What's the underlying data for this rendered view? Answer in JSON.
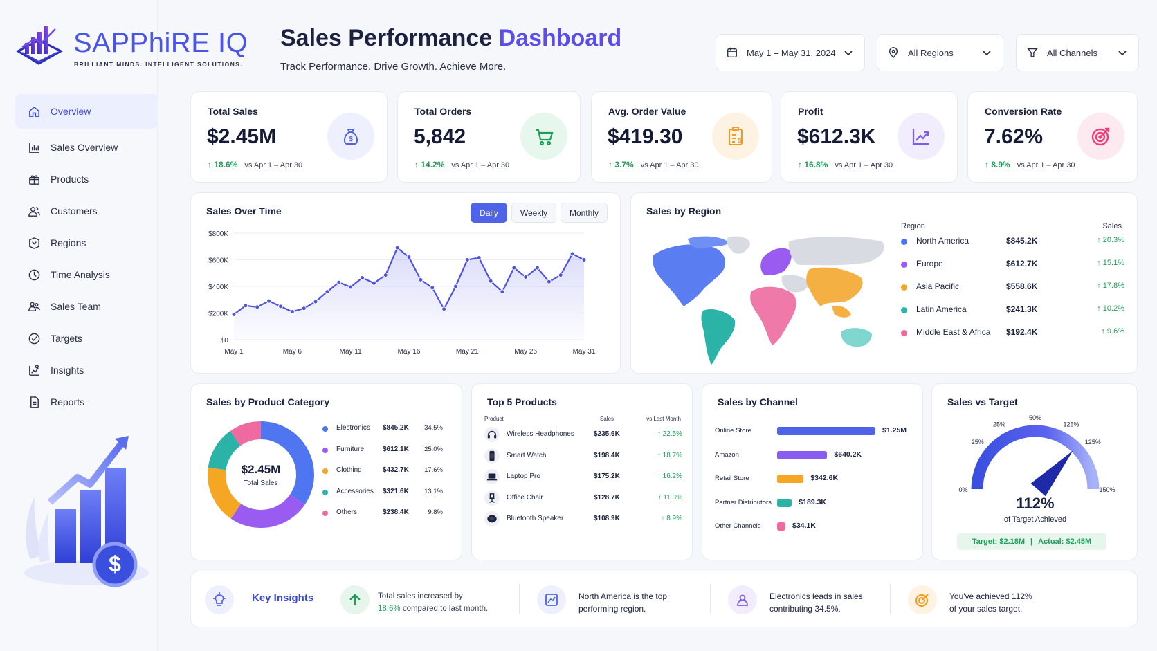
{
  "brand": {
    "name": "SAPPhiRE IQ",
    "tagline": "BRILLIANT MINDS. INTELLIGENT SOLUTIONS."
  },
  "header": {
    "title_main": "Sales Performance",
    "title_accent": "Dashboard",
    "subtitle": "Track Performance. Drive Growth. Achieve More.",
    "filters": {
      "date": "May 1 – May 31, 2024",
      "region": "All Regions",
      "channel": "All Channels"
    }
  },
  "sidebar": {
    "items": [
      {
        "label": "Overview",
        "icon": "home-icon"
      },
      {
        "label": "Sales Overview",
        "icon": "bar-chart-icon"
      },
      {
        "label": "Products",
        "icon": "gift-box-icon"
      },
      {
        "label": "Customers",
        "icon": "users-icon"
      },
      {
        "label": "Regions",
        "icon": "map-icon"
      },
      {
        "label": "Time Analysis",
        "icon": "clock-icon"
      },
      {
        "label": "Sales Team",
        "icon": "team-icon"
      },
      {
        "label": "Targets",
        "icon": "target-icon"
      },
      {
        "label": "Insights",
        "icon": "insights-icon"
      },
      {
        "label": "Reports",
        "icon": "report-icon"
      }
    ]
  },
  "kpis": [
    {
      "label": "Total Sales",
      "value": "$2.45M",
      "delta": "18.6%",
      "compare": "vs Apr 1 – Apr 30",
      "icon": "money-bag-icon",
      "color": "#4f63e8"
    },
    {
      "label": "Total Orders",
      "value": "5,842",
      "delta": "14.2%",
      "compare": "vs Apr 1 – Apr 30",
      "icon": "cart-icon",
      "color": "#1e9e57"
    },
    {
      "label": "Avg. Order Value",
      "value": "$419.30",
      "delta": "3.7%",
      "compare": "vs Apr 1 – Apr 30",
      "icon": "clipboard-dollar-icon",
      "color": "#f29a1f"
    },
    {
      "label": "Profit",
      "value": "$612.3K",
      "delta": "16.8%",
      "compare": "vs Apr 1 – Apr 30",
      "icon": "trend-icon",
      "color": "#7a5cf0"
    },
    {
      "label": "Conversion Rate",
      "value": "7.62%",
      "delta": "8.9%",
      "compare": "vs Apr 1 – Apr 30",
      "icon": "target-icon",
      "color": "#ef3f7a"
    }
  ],
  "sales_over_time": {
    "title": "Sales Over Time",
    "tabs": [
      "Daily",
      "Weekly",
      "Monthly"
    ],
    "active_tab": "Daily"
  },
  "sales_by_region": {
    "title": "Sales by Region",
    "col_region": "Region",
    "col_sales": "Sales",
    "rows": [
      {
        "name": "North America",
        "value": "$845.2K",
        "delta": "20.3%",
        "color": "#4f76f0"
      },
      {
        "name": "Europe",
        "value": "$612.7K",
        "delta": "15.1%",
        "color": "#9a5cf0"
      },
      {
        "name": "Asia Pacific",
        "value": "$558.6K",
        "delta": "17.8%",
        "color": "#f5a623"
      },
      {
        "name": "Latin America",
        "value": "$241.3K",
        "delta": "10.2%",
        "color": "#2bb3a8"
      },
      {
        "name": "Middle East & Africa",
        "value": "$192.4K",
        "delta": "9.6%",
        "color": "#ef6aa0"
      }
    ]
  },
  "category": {
    "title": "Sales by Product Category",
    "center_value": "$2.45M",
    "center_label": "Total Sales",
    "rows": [
      {
        "name": "Electronics",
        "value": "$845.2K",
        "pct": "34.5%",
        "color": "#4f76f0"
      },
      {
        "name": "Furniture",
        "value": "$612.1K",
        "pct": "25.0%",
        "color": "#9a5cf0"
      },
      {
        "name": "Clothing",
        "value": "$432.7K",
        "pct": "17.6%",
        "color": "#f5a623"
      },
      {
        "name": "Accessories",
        "value": "$321.6K",
        "pct": "13.1%",
        "color": "#2bb3a8"
      },
      {
        "name": "Others",
        "value": "$238.4K",
        "pct": "9.8%",
        "color": "#ef6aa0"
      }
    ]
  },
  "top_products": {
    "title": "Top 5 Products",
    "col_product": "Product",
    "col_sales": "Sales",
    "col_delta": "vs Last Month",
    "rows": [
      {
        "name": "Wireless Headphones",
        "sales": "$235.6K",
        "delta": "22.5%",
        "icon": "headphones-icon"
      },
      {
        "name": "Smart Watch",
        "sales": "$198.4K",
        "delta": "18.7%",
        "icon": "watch-icon"
      },
      {
        "name": "Laptop Pro",
        "sales": "$175.2K",
        "delta": "16.2%",
        "icon": "laptop-icon"
      },
      {
        "name": "Office Chair",
        "sales": "$128.7K",
        "delta": "11.3%",
        "icon": "chair-icon"
      },
      {
        "name": "Bluetooth Speaker",
        "sales": "$108.9K",
        "delta": "8.9%",
        "icon": "speaker-icon"
      }
    ]
  },
  "channels": {
    "title": "Sales by Channel",
    "rows": [
      {
        "name": "Online Store",
        "value": "$1.25M",
        "share": 1.0,
        "color": "#4f63e8"
      },
      {
        "name": "Amazon",
        "value": "$640.2K",
        "share": 0.51,
        "color": "#8a5cf0"
      },
      {
        "name": "Retail Store",
        "value": "$342.6K",
        "share": 0.27,
        "color": "#f5a623"
      },
      {
        "name": "Partner Distributors",
        "value": "$189.3K",
        "share": 0.15,
        "color": "#2bb3a8"
      },
      {
        "name": "Other Channels",
        "value": "$34.1K",
        "share": 0.03,
        "color": "#ef6aa0"
      }
    ]
  },
  "target": {
    "title": "Sales vs Target",
    "gauge_labels": [
      "0%",
      "25%",
      "25%",
      "50%",
      "125%",
      "125%",
      "150%"
    ],
    "value": "112%",
    "value_fraction": 0.747,
    "caption": "of Target Achieved",
    "target_text": "Target: $2.18M",
    "sep": "|",
    "actual_text": "Actual: $2.45M"
  },
  "insights": {
    "title": "Key Insights",
    "items": [
      {
        "line1": "Total sales increased by",
        "highlight": "18.6%",
        "line2": "compared to last month.",
        "icon": "arrow-up-icon"
      },
      {
        "line1": "North America is the top",
        "line2": "performing region.",
        "icon": "chart-icon"
      },
      {
        "line1": "Electronics leads in sales",
        "line2": "contributing 34.5%.",
        "icon": "person-icon"
      },
      {
        "line1": "You've achieved 112%",
        "line2": "of your sales target.",
        "icon": "target-icon"
      }
    ]
  },
  "chart_data": {
    "type": "area",
    "x": [
      "May 1",
      "May 2",
      "May 3",
      "May 4",
      "May 5",
      "May 6",
      "May 7",
      "May 8",
      "May 9",
      "May 10",
      "May 11",
      "May 12",
      "May 13",
      "May 14",
      "May 15",
      "May 16",
      "May 17",
      "May 18",
      "May 19",
      "May 20",
      "May 21",
      "May 22",
      "May 23",
      "May 24",
      "May 25",
      "May 26",
      "May 27",
      "May 28",
      "May 29",
      "May 30",
      "May 31"
    ],
    "x_ticks": [
      "May 1",
      "May 6",
      "May 11",
      "May 16",
      "May 21",
      "May 26",
      "May 31"
    ],
    "series": [
      {
        "values": [
          190,
          255,
          245,
          290,
          250,
          210,
          235,
          285,
          360,
          430,
          395,
          465,
          425,
          485,
          690,
          620,
          450,
          390,
          230,
          400,
          600,
          615,
          440,
          360,
          540,
          470,
          540,
          435,
          485,
          645,
          600
        ]
      }
    ],
    "ylim": [
      0,
      800
    ],
    "y_ticks": [
      "$0",
      "$200K",
      "$400K",
      "$600K",
      "$800K"
    ],
    "title": "Sales Over Time",
    "xlabel": "",
    "ylabel": ""
  }
}
